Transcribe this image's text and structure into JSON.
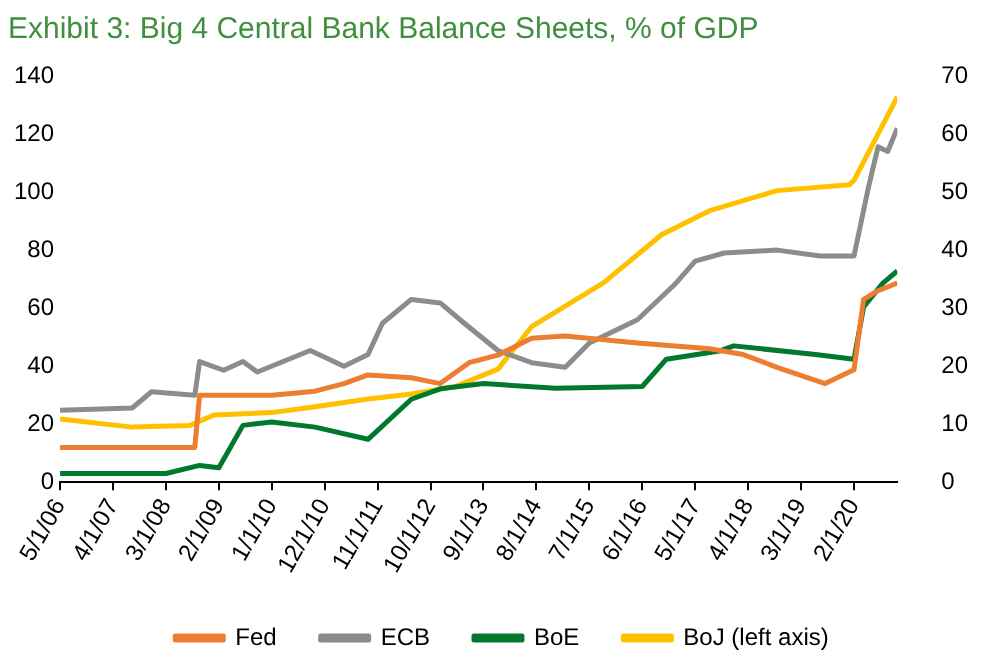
{
  "chart_data": {
    "type": "line",
    "title": "Exhibit 3: Big 4 Central Bank Balance Sheets, % of GDP",
    "xlim": [
      "2006-05",
      "2020-11"
    ],
    "xticks": [
      {
        "value": "2006-05",
        "label": "5/1/06"
      },
      {
        "value": "2007-04",
        "label": "4/1/07"
      },
      {
        "value": "2008-03",
        "label": "3/1/08"
      },
      {
        "value": "2009-02",
        "label": "2/1/09"
      },
      {
        "value": "2010-01",
        "label": "1/1/10"
      },
      {
        "value": "2010-12",
        "label": "12/1/10"
      },
      {
        "value": "2011-11",
        "label": "11/1/11"
      },
      {
        "value": "2012-10",
        "label": "10/1/12"
      },
      {
        "value": "2013-09",
        "label": "9/1/13"
      },
      {
        "value": "2014-08",
        "label": "8/1/14"
      },
      {
        "value": "2015-07",
        "label": "7/1/15"
      },
      {
        "value": "2016-06",
        "label": "6/1/16"
      },
      {
        "value": "2017-05",
        "label": "5/1/17"
      },
      {
        "value": "2018-04",
        "label": "4/1/18"
      },
      {
        "value": "2019-03",
        "label": "3/1/19"
      },
      {
        "value": "2020-02",
        "label": "2/1/20"
      }
    ],
    "ylim": [
      0,
      140
    ],
    "yticks": [
      0,
      20,
      40,
      60,
      80,
      100,
      120,
      140
    ],
    "y2lim": [
      0,
      70
    ],
    "y2ticks": [
      0,
      10,
      20,
      30,
      40,
      50,
      60,
      70
    ],
    "grid": false,
    "legend": "bottom",
    "marker": "none",
    "line_style": "solid",
    "series": [
      {
        "name": "Fed",
        "color": "#ed7d31",
        "axis": "y2",
        "x": [
          "2006-05",
          "2008-09",
          "2008-10",
          "2010-01",
          "2010-10",
          "2011-04",
          "2011-09",
          "2012-06",
          "2012-12",
          "2013-06",
          "2013-12",
          "2014-07",
          "2015-02",
          "2016-05",
          "2017-08",
          "2018-03",
          "2018-10",
          "2019-08",
          "2020-02",
          "2020-04",
          "2020-07",
          "2020-11"
        ],
        "values": [
          6,
          6,
          15,
          15,
          15.7,
          17,
          18.5,
          18,
          17,
          20.6,
          21.9,
          24.8,
          25.2,
          24,
          23,
          22,
          19.8,
          17,
          19.4,
          31.5,
          33,
          34.3
        ]
      },
      {
        "name": "ECB",
        "color": "#8c8c8c",
        "axis": "y2",
        "x": [
          "2006-05",
          "2007-08",
          "2007-12",
          "2008-09",
          "2008-10",
          "2009-03",
          "2009-07",
          "2009-10",
          "2010-09",
          "2011-04",
          "2011-09",
          "2011-12",
          "2012-06",
          "2012-12",
          "2013-05",
          "2013-12",
          "2014-07",
          "2015-02",
          "2015-07",
          "2016-05",
          "2017-01",
          "2017-05",
          "2017-11",
          "2018-10",
          "2019-07",
          "2020-02",
          "2020-05",
          "2020-07",
          "2020-09",
          "2020-11"
        ],
        "values": [
          12.4,
          12.8,
          15.6,
          15,
          20.8,
          19.3,
          20.8,
          19,
          22.7,
          20,
          22,
          27.4,
          31.5,
          30.9,
          27.4,
          22.7,
          20.6,
          19.8,
          24,
          28,
          34.3,
          38.1,
          39.5,
          40,
          39,
          39,
          50.8,
          57.8,
          57,
          61
        ]
      },
      {
        "name": "BoE",
        "color": "#00792e",
        "axis": "y2",
        "x": [
          "2006-05",
          "2008-03",
          "2008-10",
          "2009-02",
          "2009-07",
          "2010-01",
          "2010-10",
          "2011-09",
          "2012-06",
          "2012-12",
          "2013-09",
          "2014-12",
          "2016-06",
          "2016-11",
          "2017-10",
          "2018-01",
          "2019-06",
          "2020-02",
          "2020-04",
          "2020-08",
          "2020-11"
        ],
        "values": [
          1.5,
          1.5,
          2.9,
          2.5,
          9.8,
          10.4,
          9.5,
          7.4,
          14.3,
          16.1,
          17,
          16.2,
          16.5,
          21.2,
          22.6,
          23.5,
          22,
          21.2,
          30.2,
          34.3,
          36.4
        ]
      },
      {
        "name": "BoJ (left axis)",
        "color": "#ffc000",
        "x": [
          "2006-05",
          "2007-08",
          "2008-08",
          "2009-01",
          "2010-01",
          "2010-10",
          "2011-09",
          "2012-06",
          "2013-03",
          "2013-12",
          "2014-07",
          "2015-10",
          "2016-10",
          "2017-08",
          "2018-10",
          "2020-01",
          "2020-02",
          "2020-11"
        ],
        "values": [
          21.8,
          19,
          19.6,
          23.2,
          24,
          26,
          28.7,
          30.4,
          32.9,
          39,
          53.6,
          68.8,
          85.3,
          93.6,
          100.5,
          102.5,
          104,
          132.8
        ]
      }
    ]
  }
}
